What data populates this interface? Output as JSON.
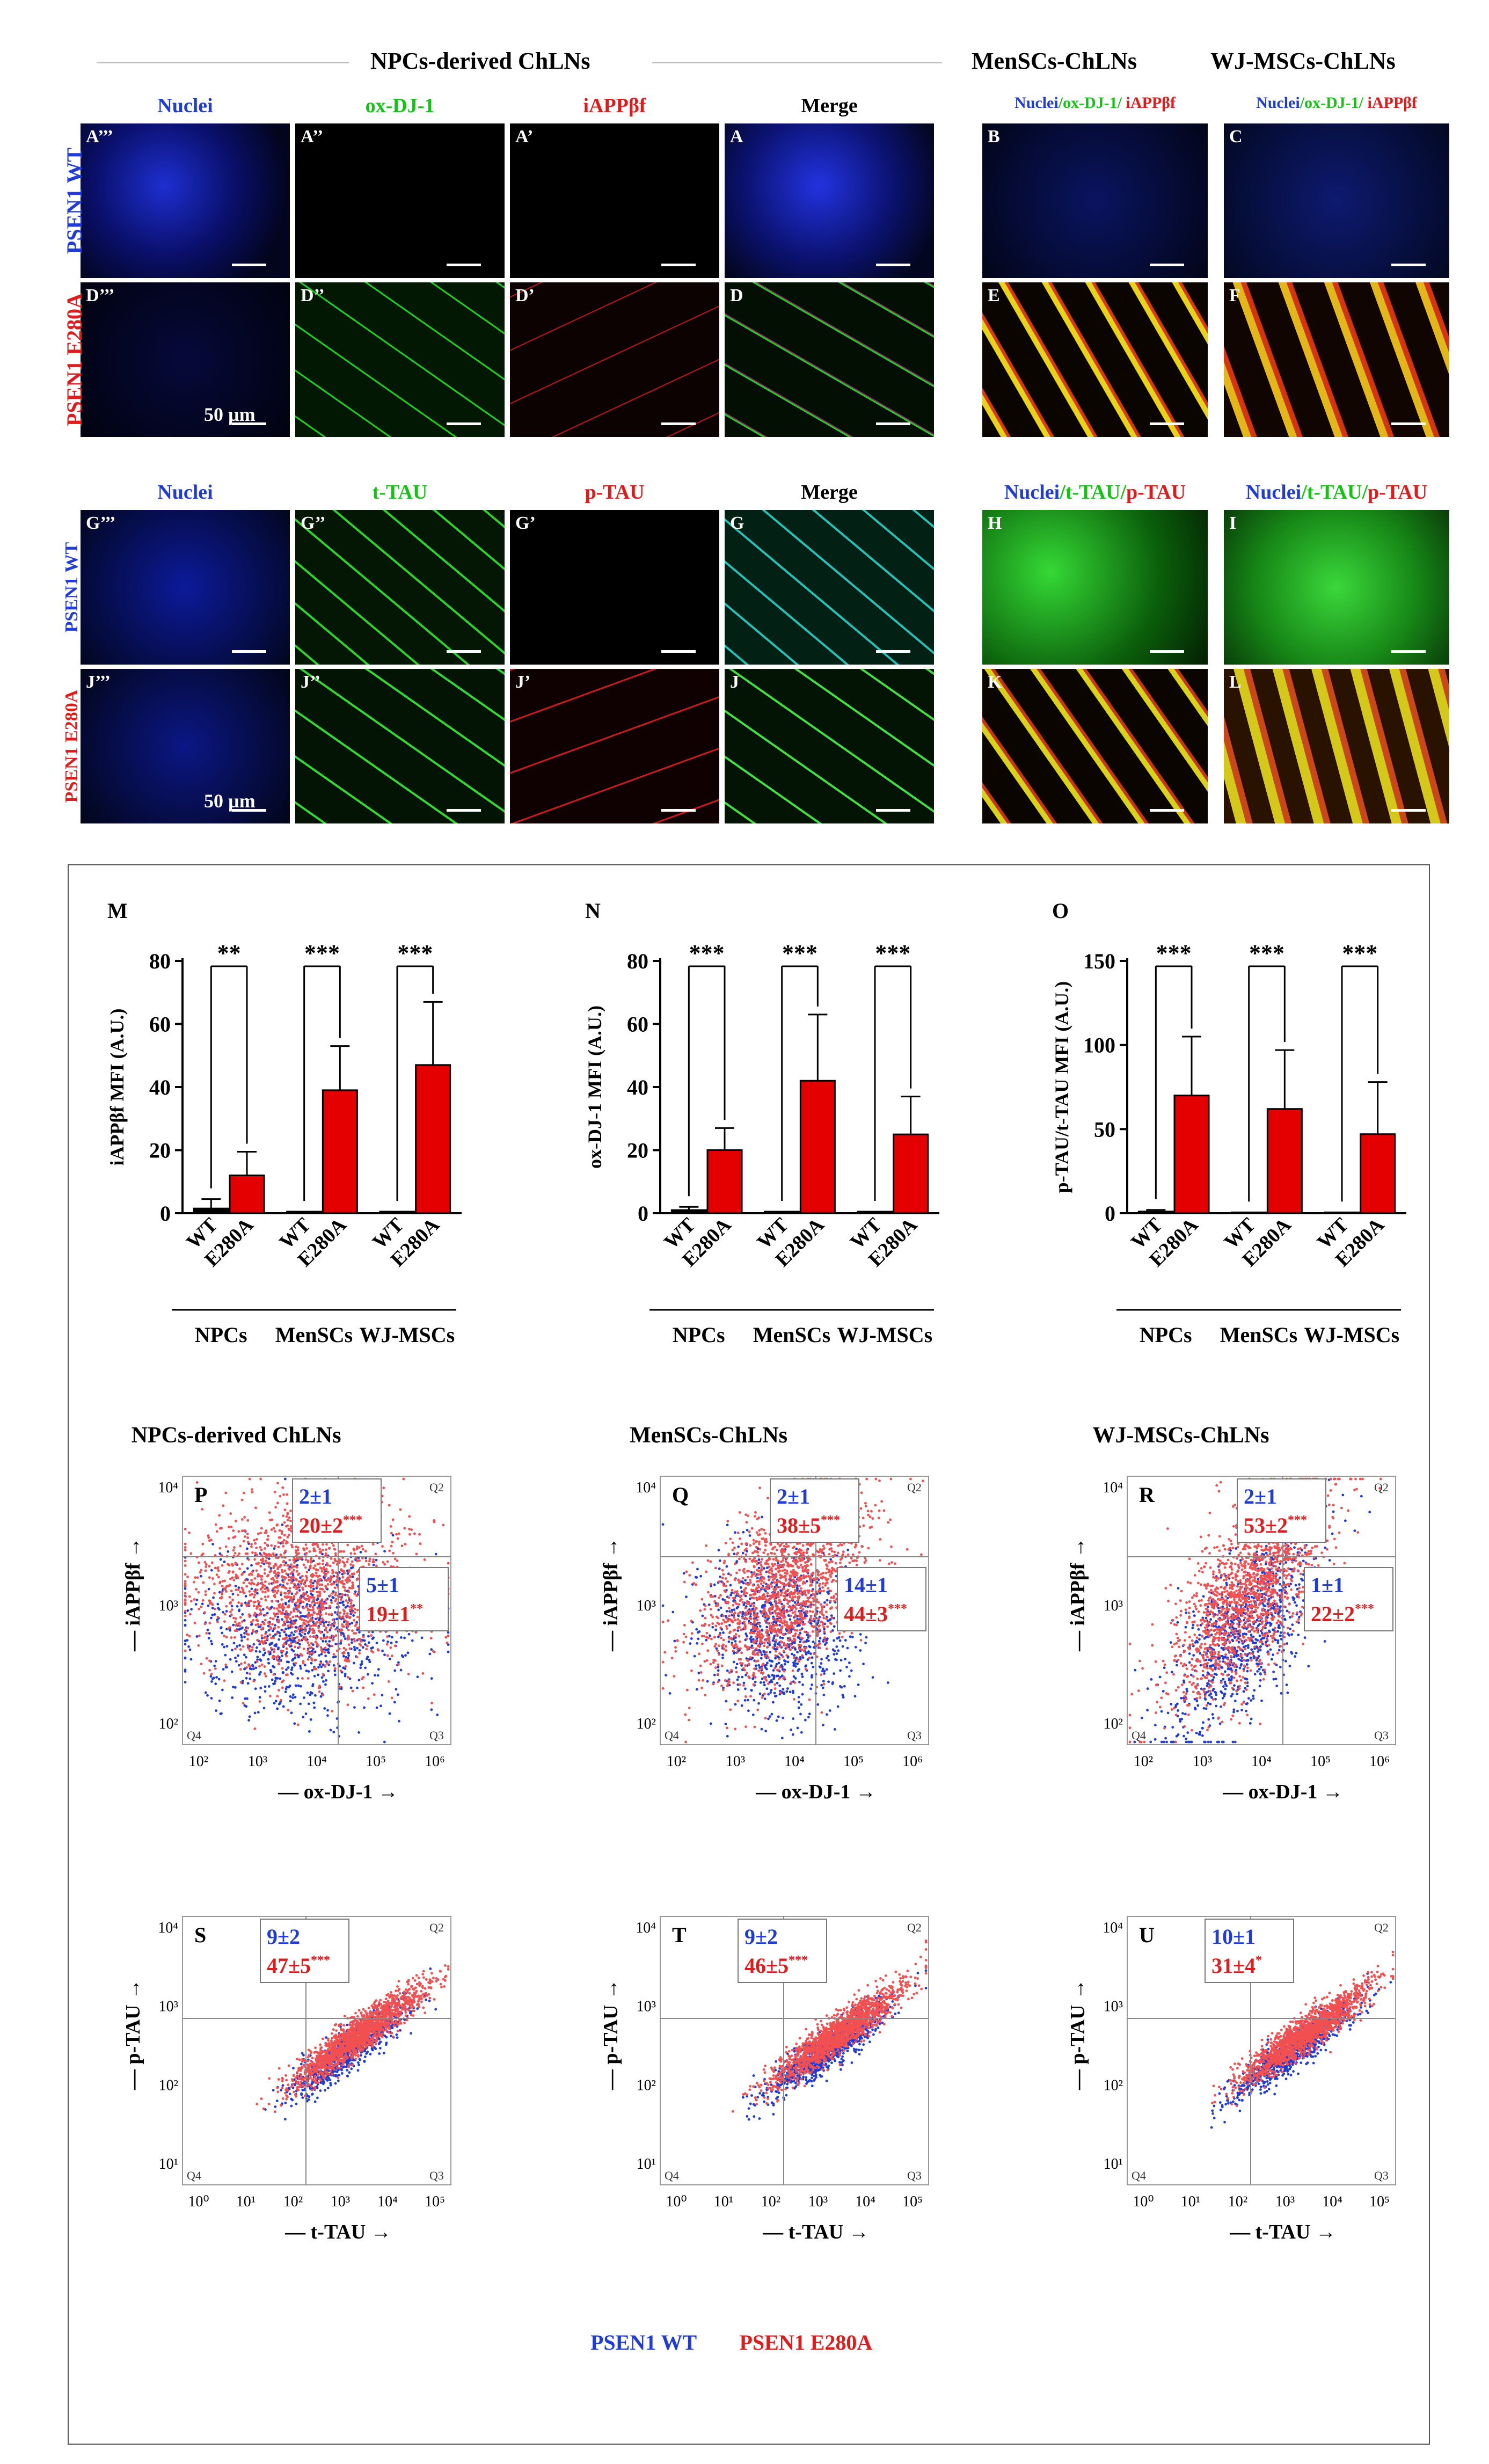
{
  "colors": {
    "wt": "#1f3bd8",
    "e280a": "#e01b1b",
    "green": "#14c414",
    "dark": "#000000"
  },
  "headers": {
    "npc": "NPCs-derived ChLNs",
    "mensc": "MenSCs-ChLNs",
    "wj": "WJ-MSCs-ChLNs"
  },
  "top_block": {
    "col_heads": [
      "Nuclei",
      "ox-DJ-1",
      "iAPPβf",
      "Merge"
    ],
    "combo_head_1": {
      "a": "Nuclei",
      "b": "/ox-DJ-1/",
      "c": " iAPPβf"
    },
    "combo_head_2": {
      "a": "Nuclei",
      "b": "/ox-DJ-1/",
      "c": " iAPPβf"
    },
    "row_labels": [
      "PSEN1 WT",
      "PSEN1 E280A"
    ],
    "row1": [
      "A’’’",
      "A’’",
      "A’",
      "A",
      "B",
      "C"
    ],
    "row2": [
      "D’’’",
      "D’’",
      "D’",
      "D",
      "E",
      "F"
    ],
    "scale": "50 µm"
  },
  "mid_block": {
    "col_heads": [
      "Nuclei",
      "t-TAU",
      "p-TAU",
      "Merge"
    ],
    "combo_head_1": {
      "a": "Nuclei",
      "b": "/t-TAU/",
      "c": "p-TAU"
    },
    "combo_head_2": {
      "a": "Nuclei",
      "b": "/t-TAU/",
      "c": "p-TAU"
    },
    "row_labels": [
      "PSEN1 WT",
      "PSEN1 E280A"
    ],
    "row1": [
      "G’’’",
      "G’’",
      "G’",
      "G",
      "H",
      "I"
    ],
    "row2": [
      "J’’’",
      "J’’",
      "J’",
      "J",
      "K",
      "L"
    ],
    "scale": "50 µm"
  },
  "bar_charts": [
    {
      "letter": "M",
      "type": "bar",
      "ylabel": "iAPPβf MFI (A.U.)",
      "ylim": [
        0,
        80
      ],
      "ticks": [
        0,
        20,
        40,
        60,
        80
      ],
      "categories": [
        "WT",
        "E280A",
        "WT",
        "E280A",
        "WT",
        "E280A"
      ],
      "groups": [
        "NPCs",
        "MenSCs",
        "WJ-MSCs"
      ],
      "values": [
        1.5,
        12,
        0.5,
        39,
        0.5,
        47
      ],
      "errors": [
        3,
        7.5,
        0,
        14,
        0,
        20
      ],
      "sig": [
        "**",
        "***",
        "***"
      ]
    },
    {
      "letter": "N",
      "type": "bar",
      "ylabel": "ox-DJ-1 MFI (A.U.)",
      "ylim": [
        0,
        80
      ],
      "ticks": [
        0,
        20,
        40,
        60,
        80
      ],
      "categories": [
        "WT",
        "E280A",
        "WT",
        "E280A",
        "WT",
        "E280A"
      ],
      "groups": [
        "NPCs",
        "MenSCs",
        "WJ-MSCs"
      ],
      "values": [
        1,
        20,
        0.5,
        42,
        0.5,
        25
      ],
      "errors": [
        1,
        7,
        0,
        21,
        0,
        12
      ],
      "sig": [
        "***",
        "***",
        "***"
      ]
    },
    {
      "letter": "O",
      "type": "bar",
      "ylabel": "p-TAU/t-TAU MFI (A.U.)",
      "ylim": [
        0,
        150
      ],
      "ticks": [
        0,
        50,
        100,
        150
      ],
      "categories": [
        "WT",
        "E280A",
        "WT",
        "E280A",
        "WT",
        "E280A"
      ],
      "groups": [
        "NPCs",
        "MenSCs",
        "WJ-MSCs"
      ],
      "values": [
        1,
        70,
        0.5,
        62,
        0.5,
        47
      ],
      "errors": [
        1,
        35,
        0,
        35,
        0,
        31
      ],
      "sig": [
        "***",
        "***",
        "***"
      ]
    }
  ],
  "flow_titles": [
    "NPCs-derived ChLNs",
    "MenSCs-ChLNs",
    "WJ-MSCs-ChLNs"
  ],
  "chart_data": [
    {
      "type": "scatter",
      "letter": "P",
      "xlabel": "ox-DJ-1",
      "ylabel": "iAPPβf",
      "q_labels": [
        "Q2",
        "Q4",
        "Q3"
      ],
      "box1": {
        "wt": "2±1",
        "mut": "20±2",
        "star": "***"
      },
      "box2": {
        "wt": "5±1",
        "mut": "19±1",
        "star": "**"
      }
    },
    {
      "type": "scatter",
      "letter": "Q",
      "xlabel": "ox-DJ-1",
      "ylabel": "iAPPβf",
      "q_labels": [
        "Q2",
        "Q4",
        "Q3"
      ],
      "box1": {
        "wt": "2±1",
        "mut": "38±5",
        "star": "***"
      },
      "box2": {
        "wt": "14±1",
        "mut": "44±3",
        "star": "***"
      }
    },
    {
      "type": "scatter",
      "letter": "R",
      "xlabel": "ox-DJ-1",
      "ylabel": "iAPPβf",
      "q_labels": [
        "Q2",
        "Q4",
        "Q3"
      ],
      "box1": {
        "wt": "2±1",
        "mut": "53±2",
        "star": "***"
      },
      "box2": {
        "wt": "1±1",
        "mut": "22±2",
        "star": "***"
      }
    },
    {
      "type": "scatter",
      "letter": "S",
      "xlabel": "t-TAU",
      "ylabel": "p-TAU",
      "q_labels": [
        "Q2",
        "Q4",
        "Q3"
      ],
      "box1": {
        "wt": "9±2",
        "mut": "47±5",
        "star": "***"
      }
    },
    {
      "type": "scatter",
      "letter": "T",
      "xlabel": "t-TAU",
      "ylabel": "p-TAU",
      "q_labels": [
        "Q2",
        "Q4",
        "Q3"
      ],
      "box1": {
        "wt": "9±2",
        "mut": "46±5",
        "star": "***"
      }
    },
    {
      "type": "scatter",
      "letter": "U",
      "xlabel": "t-TAU",
      "ylabel": "p-TAU",
      "q_labels": [
        "Q2",
        "Q4",
        "Q3"
      ],
      "box1": {
        "wt": "10±1",
        "mut": "31±4",
        "star": "*"
      }
    }
  ],
  "legend": {
    "wt": "PSEN1 WT",
    "mut": "PSEN1 E280A"
  }
}
